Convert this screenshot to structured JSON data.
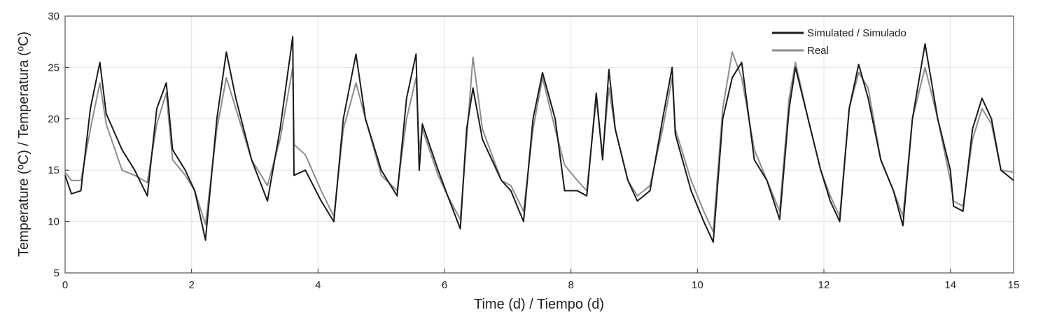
{
  "chart_data": {
    "type": "line",
    "xlabel": "Time (d) / Tiempo (d)",
    "ylabel": "Temperature (ºC) / Temperatura (ºC)",
    "x": [
      0,
      0.1,
      0.25,
      0.4,
      0.55,
      0.65,
      0.9,
      1.1,
      1.3,
      1.45,
      1.6,
      1.7,
      1.9,
      2.05,
      2.22,
      2.4,
      2.55,
      2.7,
      2.95,
      3.2,
      3.4,
      3.6,
      3.62,
      3.8,
      4.05,
      4.25,
      4.4,
      4.6,
      4.75,
      5.0,
      5.25,
      5.4,
      5.55,
      5.6,
      5.65,
      5.9,
      6.05,
      6.25,
      6.35,
      6.45,
      6.6,
      6.9,
      7.05,
      7.25,
      7.4,
      7.55,
      7.75,
      7.9,
      8.1,
      8.25,
      8.4,
      8.5,
      8.6,
      8.7,
      8.9,
      9.05,
      9.25,
      9.45,
      9.6,
      9.65,
      9.9,
      10.1,
      10.25,
      10.4,
      10.55,
      10.7,
      10.9,
      11.1,
      11.3,
      11.45,
      11.55,
      11.75,
      11.95,
      12.1,
      12.25,
      12.4,
      12.55,
      12.7,
      12.9,
      13.1,
      13.25,
      13.4,
      13.6,
      13.8,
      14.0,
      14.05,
      14.2,
      14.35,
      14.5,
      14.65,
      14.8,
      15
    ],
    "series": [
      {
        "name": "Real",
        "color": "#8c8c8c",
        "values": [
          14.8,
          14,
          14,
          19,
          23.5,
          19.5,
          15,
          14.5,
          13.8,
          19.5,
          22.5,
          16,
          14.5,
          13,
          9.7,
          19,
          24,
          21,
          16,
          13.5,
          18,
          25,
          17.5,
          16.5,
          13,
          10.5,
          19,
          23.5,
          20,
          14.5,
          13,
          20,
          24,
          17,
          19,
          14.5,
          12.5,
          10.2,
          18,
          26,
          19,
          14,
          13.5,
          11,
          19,
          24,
          19,
          15.5,
          14,
          13,
          22,
          16.5,
          23,
          19,
          14,
          12.5,
          13.5,
          19,
          24,
          19,
          14,
          11,
          9,
          21,
          26.5,
          24,
          17,
          14,
          11,
          22,
          25.5,
          20,
          15,
          12.5,
          10.5,
          21,
          24.5,
          23,
          16,
          13,
          10.5,
          20,
          25,
          20,
          14,
          12,
          11.5,
          18,
          21,
          19.5,
          15,
          14.8
        ]
      },
      {
        "name": "Simulated / Simulado",
        "color": "#1a1a1a",
        "values": [
          14.5,
          12.7,
          13,
          21,
          25.5,
          20.5,
          17,
          15,
          12.5,
          21,
          23.5,
          17,
          15,
          13,
          8.2,
          20,
          26.5,
          22,
          16,
          12,
          19,
          28,
          14.5,
          15,
          12,
          10,
          20,
          26.3,
          20,
          15,
          12.5,
          22,
          26.3,
          15,
          19.5,
          15,
          12.5,
          9.3,
          19,
          23,
          18,
          14,
          13,
          10,
          20,
          24.5,
          20,
          13,
          13,
          12.5,
          22.5,
          16,
          24.8,
          19,
          14,
          12,
          13,
          20,
          25,
          18.5,
          13,
          10,
          8,
          20,
          24,
          25.5,
          16,
          14,
          10.2,
          21,
          25,
          20,
          15,
          12,
          10,
          21,
          25.3,
          22,
          16,
          13,
          9.6,
          20,
          27.3,
          20,
          15,
          11.5,
          11,
          19,
          22,
          20,
          15,
          14
        ]
      }
    ],
    "xlim": [
      0,
      15
    ],
    "xticks": [
      0,
      2,
      4,
      6,
      8,
      10,
      12,
      14,
      15
    ],
    "ylim": [
      5,
      30
    ],
    "yticks": [
      5,
      10,
      15,
      20,
      25,
      30
    ],
    "grid": true,
    "legend": "upper-right"
  }
}
